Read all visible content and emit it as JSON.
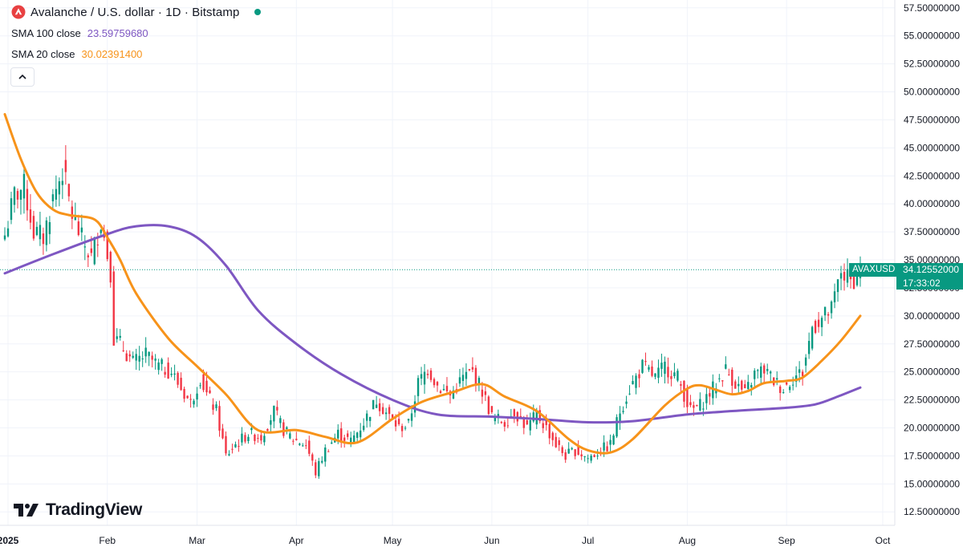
{
  "header": {
    "title": "Avalanche / U.S. dollar · 1D · Bitstamp",
    "indicators": [
      {
        "name": "SMA 100 close",
        "value": "23.59759680",
        "color": "#7e57c2"
      },
      {
        "name": "SMA 20 close",
        "value": "30.02391400",
        "color": "#f7931a"
      }
    ]
  },
  "brand": {
    "name": "TradingView"
  },
  "last_price": {
    "symbol": "AVAXUSD",
    "price": "34.12552000",
    "countdown": "17:33:02",
    "color": "#089981"
  },
  "colors": {
    "up": "#089981",
    "down": "#f23645",
    "sma100": "#7e57c2",
    "sma20": "#f7931a"
  },
  "chart_data": {
    "type": "candlestick",
    "title": "Avalanche / U.S. dollar · 1D · Bitstamp",
    "x_tick_labels": [
      "2025",
      "Feb",
      "Mar",
      "Apr",
      "May",
      "Jun",
      "Jul",
      "Aug",
      "Sep",
      "Oct"
    ],
    "x_ticks_dates": [
      "2025-01-01",
      "2025-02-01",
      "2025-03-01",
      "2025-04-01",
      "2025-05-01",
      "2025-06-01",
      "2025-07-01",
      "2025-08-01",
      "2025-09-01",
      "2025-10-01"
    ],
    "y_tick_labels": [
      "57.50000000",
      "55.00000000",
      "52.50000000",
      "50.00000000",
      "47.50000000",
      "45.00000000",
      "42.50000000",
      "40.00000000",
      "37.50000000",
      "35.00000000",
      "32.50000000",
      "30.00000000",
      "27.50000000",
      "25.00000000",
      "22.50000000",
      "20.00000000",
      "17.50000000",
      "15.00000000",
      "12.50000000"
    ],
    "ylim": [
      11.3,
      58.2
    ],
    "date_range": [
      "2024-12-31",
      "2025-09-24"
    ],
    "close_anchors": [
      [
        "2024-12-31",
        37.2
      ],
      [
        "2025-01-03",
        40.8
      ],
      [
        "2025-01-06",
        41.5
      ],
      [
        "2025-01-09",
        37.5
      ],
      [
        "2025-01-12",
        37.0
      ],
      [
        "2025-01-15",
        40.5
      ],
      [
        "2025-01-18",
        43.0
      ],
      [
        "2025-01-21",
        39.0
      ],
      [
        "2025-01-24",
        36.8
      ],
      [
        "2025-01-27",
        35.2
      ],
      [
        "2025-01-30",
        38.5
      ],
      [
        "2025-02-02",
        34.0
      ],
      [
        "2025-02-03",
        28.0
      ],
      [
        "2025-02-05",
        27.5
      ],
      [
        "2025-02-09",
        25.8
      ],
      [
        "2025-02-13",
        26.5
      ],
      [
        "2025-02-17",
        25.5
      ],
      [
        "2025-02-21",
        25.0
      ],
      [
        "2025-02-24",
        23.5
      ],
      [
        "2025-02-27",
        22.2
      ],
      [
        "2025-03-02",
        24.5
      ],
      [
        "2025-03-04",
        23.0
      ],
      [
        "2025-03-07",
        21.5
      ],
      [
        "2025-03-10",
        17.5
      ],
      [
        "2025-03-13",
        18.5
      ],
      [
        "2025-03-17",
        19.5
      ],
      [
        "2025-03-21",
        19.2
      ],
      [
        "2025-03-25",
        21.5
      ],
      [
        "2025-03-28",
        19.8
      ],
      [
        "2025-03-31",
        19.0
      ],
      [
        "2025-04-04",
        18.5
      ],
      [
        "2025-04-07",
        16.0
      ],
      [
        "2025-04-10",
        18.0
      ],
      [
        "2025-04-14",
        19.5
      ],
      [
        "2025-04-18",
        18.8
      ],
      [
        "2025-04-22",
        20.5
      ],
      [
        "2025-04-26",
        22.5
      ],
      [
        "2025-04-30",
        21.0
      ],
      [
        "2025-05-03",
        20.0
      ],
      [
        "2025-05-06",
        20.3
      ],
      [
        "2025-05-09",
        24.0
      ],
      [
        "2025-05-12",
        25.3
      ],
      [
        "2025-05-15",
        23.8
      ],
      [
        "2025-05-19",
        22.9
      ],
      [
        "2025-05-23",
        24.5
      ],
      [
        "2025-05-26",
        25.0
      ],
      [
        "2025-05-29",
        23.3
      ],
      [
        "2025-06-01",
        21.0
      ],
      [
        "2025-06-05",
        20.5
      ],
      [
        "2025-06-08",
        21.5
      ],
      [
        "2025-06-12",
        20.0
      ],
      [
        "2025-06-15",
        21.2
      ],
      [
        "2025-06-18",
        20.0
      ],
      [
        "2025-06-21",
        18.5
      ],
      [
        "2025-06-24",
        17.5
      ],
      [
        "2025-06-27",
        18.0
      ],
      [
        "2025-07-01",
        17.3
      ],
      [
        "2025-07-05",
        18.0
      ],
      [
        "2025-07-08",
        18.5
      ],
      [
        "2025-07-11",
        21.5
      ],
      [
        "2025-07-14",
        23.5
      ],
      [
        "2025-07-18",
        25.5
      ],
      [
        "2025-07-22",
        24.5
      ],
      [
        "2025-07-25",
        25.5
      ],
      [
        "2025-07-29",
        24.5
      ],
      [
        "2025-08-02",
        21.5
      ],
      [
        "2025-08-05",
        22.0
      ],
      [
        "2025-08-09",
        23.5
      ],
      [
        "2025-08-13",
        25.2
      ],
      [
        "2025-08-16",
        24.0
      ],
      [
        "2025-08-19",
        23.0
      ],
      [
        "2025-08-22",
        24.8
      ],
      [
        "2025-08-25",
        25.2
      ],
      [
        "2025-08-28",
        24.2
      ],
      [
        "2025-08-31",
        23.5
      ],
      [
        "2025-09-03",
        24.5
      ],
      [
        "2025-09-06",
        25.0
      ],
      [
        "2025-09-09",
        29.0
      ],
      [
        "2025-09-12",
        29.8
      ],
      [
        "2025-09-15",
        30.5
      ],
      [
        "2025-09-18",
        34.0
      ],
      [
        "2025-09-21",
        33.0
      ],
      [
        "2025-09-24",
        34.13
      ]
    ],
    "series": [
      {
        "name": "SMA 100 close",
        "last": 23.5976,
        "points": [
          [
            "2024-12-31",
            33.8
          ],
          [
            "2025-01-15",
            35.5
          ],
          [
            "2025-02-01",
            37.3
          ],
          [
            "2025-02-10",
            38.0
          ],
          [
            "2025-02-20",
            38.0
          ],
          [
            "2025-03-01",
            37.0
          ],
          [
            "2025-03-10",
            34.5
          ],
          [
            "2025-03-20",
            30.5
          ],
          [
            "2025-04-01",
            27.5
          ],
          [
            "2025-04-15",
            24.8
          ],
          [
            "2025-05-01",
            22.5
          ],
          [
            "2025-05-15",
            21.2
          ],
          [
            "2025-06-01",
            21.0
          ],
          [
            "2025-06-15",
            20.8
          ],
          [
            "2025-07-01",
            20.5
          ],
          [
            "2025-07-15",
            20.6
          ],
          [
            "2025-08-01",
            21.2
          ],
          [
            "2025-08-15",
            21.5
          ],
          [
            "2025-09-01",
            21.8
          ],
          [
            "2025-09-10",
            22.1
          ],
          [
            "2025-09-17",
            22.8
          ],
          [
            "2025-09-24",
            23.6
          ]
        ]
      },
      {
        "name": "SMA 20 close",
        "last": 30.0239,
        "points": [
          [
            "2024-12-31",
            48.0
          ],
          [
            "2025-01-05",
            44.0
          ],
          [
            "2025-01-10",
            41.0
          ],
          [
            "2025-01-15",
            39.5
          ],
          [
            "2025-01-20",
            39.0
          ],
          [
            "2025-01-28",
            38.6
          ],
          [
            "2025-02-01",
            37.0
          ],
          [
            "2025-02-05",
            35.0
          ],
          [
            "2025-02-10",
            32.0
          ],
          [
            "2025-02-20",
            28.0
          ],
          [
            "2025-03-01",
            25.5
          ],
          [
            "2025-03-10",
            23.0
          ],
          [
            "2025-03-20",
            19.8
          ],
          [
            "2025-04-01",
            19.8
          ],
          [
            "2025-04-10",
            19.2
          ],
          [
            "2025-04-20",
            18.7
          ],
          [
            "2025-05-01",
            20.8
          ],
          [
            "2025-05-10",
            22.3
          ],
          [
            "2025-05-20",
            23.2
          ],
          [
            "2025-05-29",
            23.9
          ],
          [
            "2025-06-05",
            22.8
          ],
          [
            "2025-06-15",
            21.5
          ],
          [
            "2025-06-25",
            19.0
          ],
          [
            "2025-07-01",
            18.0
          ],
          [
            "2025-07-08",
            17.8
          ],
          [
            "2025-07-15",
            19.0
          ],
          [
            "2025-07-25",
            22.0
          ],
          [
            "2025-08-01",
            23.5
          ],
          [
            "2025-08-05",
            23.8
          ],
          [
            "2025-08-10",
            23.4
          ],
          [
            "2025-08-15",
            23.0
          ],
          [
            "2025-08-20",
            23.3
          ],
          [
            "2025-08-25",
            24.0
          ],
          [
            "2025-09-01",
            24.2
          ],
          [
            "2025-09-06",
            24.5
          ],
          [
            "2025-09-12",
            26.0
          ],
          [
            "2025-09-18",
            27.8
          ],
          [
            "2025-09-24",
            30.0
          ]
        ]
      }
    ],
    "last_price": 34.12552,
    "grid": true,
    "legend": "top-left"
  }
}
